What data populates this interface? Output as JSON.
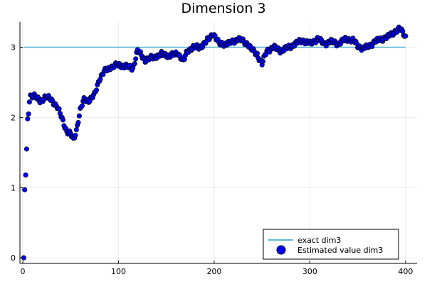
{
  "chart_data": {
    "type": "scatter",
    "title": "Dimension 3",
    "xlabel": "",
    "ylabel": "",
    "xlim": [
      -3,
      412
    ],
    "ylim": [
      -0.08,
      3.36
    ],
    "xticks": [
      0,
      100,
      200,
      300,
      400
    ],
    "yticks": [
      0,
      1,
      2,
      3
    ],
    "grid": true,
    "legend_position": "bottom-right",
    "colors": {
      "line": "#5cb8d6",
      "marker": "#0000ff",
      "marker_edge": "#000000"
    },
    "series": [
      {
        "name": "exact dim3",
        "kind": "line",
        "x": [
          1,
          400
        ],
        "y": [
          3.0,
          3.0
        ]
      },
      {
        "name": "Estimated value dim3",
        "kind": "scatter",
        "anchors": [
          [
            1,
            0.0
          ],
          [
            2,
            0.97
          ],
          [
            3,
            1.18
          ],
          [
            4,
            1.55
          ],
          [
            5,
            1.98
          ],
          [
            6,
            2.05
          ],
          [
            7,
            2.22
          ],
          [
            8,
            2.32
          ],
          [
            12,
            2.31
          ],
          [
            18,
            2.23
          ],
          [
            24,
            2.3
          ],
          [
            30,
            2.25
          ],
          [
            36,
            2.15
          ],
          [
            42,
            1.95
          ],
          [
            46,
            1.8
          ],
          [
            50,
            1.76
          ],
          [
            53,
            1.68
          ],
          [
            56,
            1.82
          ],
          [
            60,
            2.1
          ],
          [
            64,
            2.25
          ],
          [
            70,
            2.25
          ],
          [
            75,
            2.32
          ],
          [
            80,
            2.55
          ],
          [
            85,
            2.65
          ],
          [
            92,
            2.72
          ],
          [
            100,
            2.75
          ],
          [
            110,
            2.72
          ],
          [
            115,
            2.7
          ],
          [
            120,
            2.95
          ],
          [
            128,
            2.82
          ],
          [
            135,
            2.85
          ],
          [
            145,
            2.9
          ],
          [
            155,
            2.88
          ],
          [
            162,
            2.92
          ],
          [
            168,
            2.8
          ],
          [
            172,
            2.95
          ],
          [
            178,
            3.0
          ],
          [
            185,
            3.0
          ],
          [
            192,
            3.08
          ],
          [
            199,
            3.2
          ],
          [
            205,
            3.05
          ],
          [
            215,
            3.05
          ],
          [
            225,
            3.12
          ],
          [
            235,
            3.05
          ],
          [
            240,
            2.95
          ],
          [
            245,
            2.9
          ],
          [
            250,
            2.76
          ],
          [
            255,
            2.95
          ],
          [
            262,
            3.0
          ],
          [
            270,
            2.95
          ],
          [
            278,
            3.0
          ],
          [
            285,
            3.05
          ],
          [
            292,
            3.1
          ],
          [
            300,
            3.05
          ],
          [
            308,
            3.12
          ],
          [
            315,
            3.05
          ],
          [
            322,
            3.08
          ],
          [
            330,
            3.05
          ],
          [
            338,
            3.12
          ],
          [
            345,
            3.1
          ],
          [
            350,
            3.02
          ],
          [
            356,
            2.98
          ],
          [
            362,
            3.02
          ],
          [
            368,
            3.08
          ],
          [
            375,
            3.12
          ],
          [
            382,
            3.15
          ],
          [
            388,
            3.22
          ],
          [
            394,
            3.26
          ],
          [
            398,
            3.2
          ],
          [
            400,
            3.15
          ]
        ]
      }
    ]
  }
}
